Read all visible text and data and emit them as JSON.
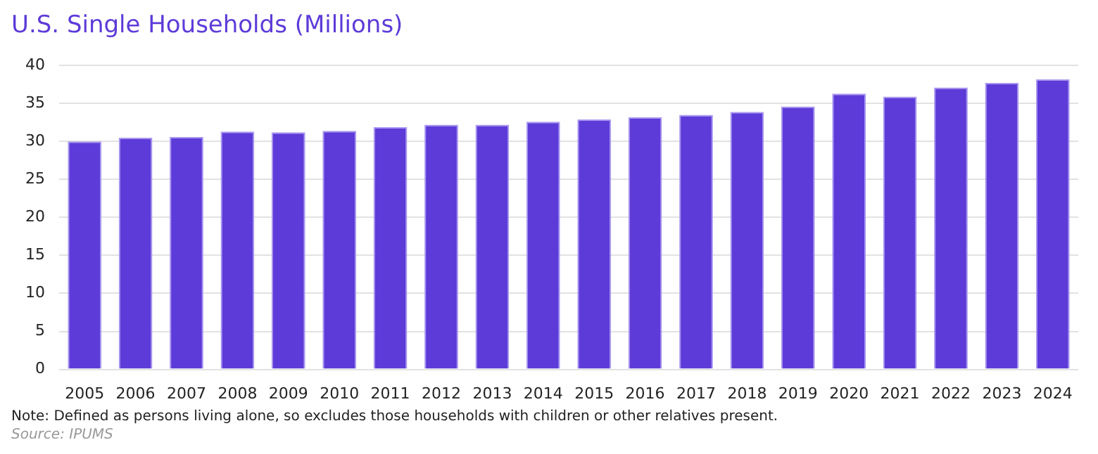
{
  "chart_data": {
    "type": "bar",
    "title": "U.S. Single Households (Millions)",
    "categories": [
      "2005",
      "2006",
      "2007",
      "2008",
      "2009",
      "2010",
      "2011",
      "2012",
      "2013",
      "2014",
      "2015",
      "2016",
      "2017",
      "2018",
      "2019",
      "2020",
      "2021",
      "2022",
      "2023",
      "2024"
    ],
    "values": [
      30.0,
      30.5,
      30.6,
      31.3,
      31.2,
      31.4,
      31.9,
      32.2,
      32.2,
      32.6,
      32.9,
      33.2,
      33.5,
      33.9,
      34.6,
      36.3,
      35.9,
      37.1,
      37.7,
      38.2
    ],
    "color": "#5d3bd8",
    "ylim": [
      0,
      40
    ],
    "yticks": [
      0,
      5,
      10,
      15,
      20,
      25,
      30,
      35,
      40
    ],
    "grid": "y",
    "annotations": [
      "Note: Defined as persons living alone, so excludes those households with children or other relatives present.",
      "Source: IPUMS"
    ]
  }
}
